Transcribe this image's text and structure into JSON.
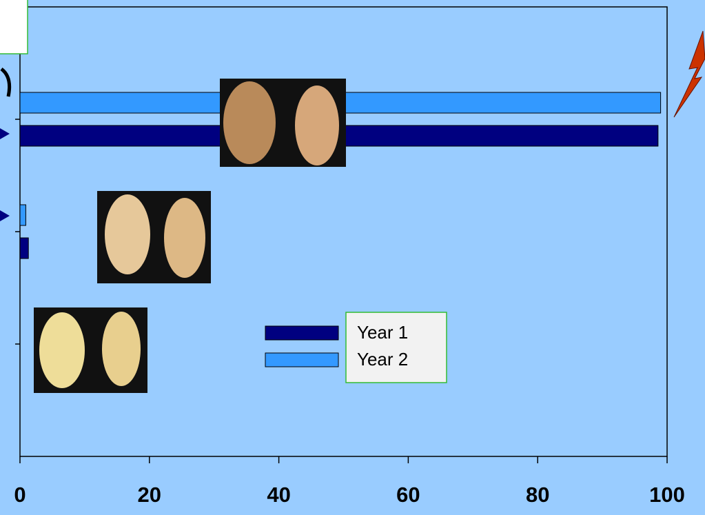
{
  "chart_data": {
    "type": "hbar",
    "categories": [
      null,
      null,
      null
    ],
    "series": [
      {
        "name": "Year 1",
        "color": "#000080",
        "values": [
          98.6,
          1.3,
          0
        ]
      },
      {
        "name": "Year 2",
        "color": "#3399ff",
        "values": [
          99,
          0.9,
          0
        ]
      }
    ],
    "xlim": [
      0,
      100
    ],
    "xticks": [
      0,
      20,
      40,
      60,
      80,
      100
    ]
  }
}
